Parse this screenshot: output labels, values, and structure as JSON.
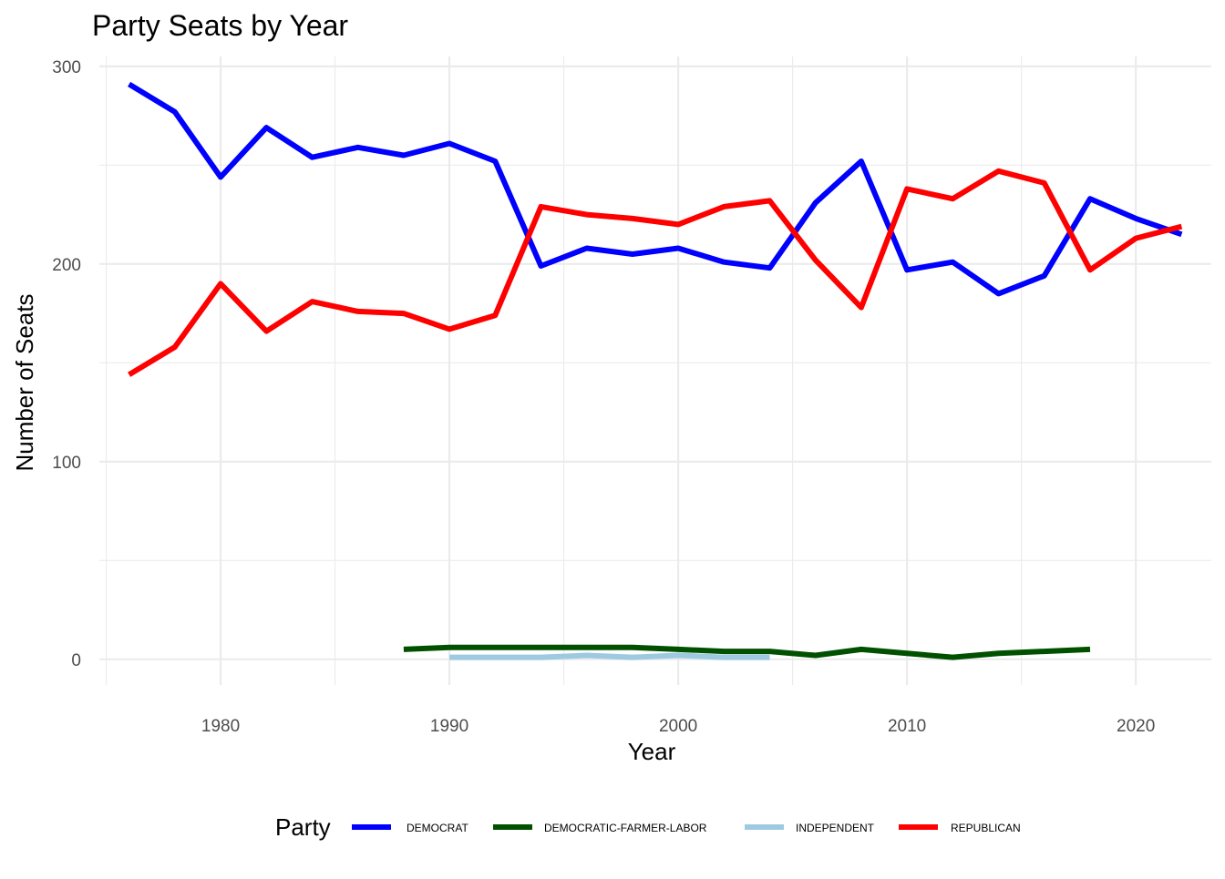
{
  "chart_data": {
    "type": "line",
    "title": "Party Seats by Year",
    "xlabel": "Year",
    "ylabel": "Number of Seats",
    "xlim": [
      1974.7,
      2023.3
    ],
    "ylim": [
      -13,
      305
    ],
    "x_ticks": [
      1980,
      1990,
      2000,
      2010,
      2020
    ],
    "x_minor_ticks": [
      1975,
      1985,
      1995,
      2005,
      2015
    ],
    "y_ticks": [
      0,
      100,
      200,
      300
    ],
    "y_minor_ticks": [
      50,
      150,
      250
    ],
    "grid": true,
    "legend": {
      "title": "Party",
      "position": "bottom"
    },
    "series": [
      {
        "name": "DEMOCRAT",
        "color": "#0000ff",
        "points": [
          [
            1976,
            291
          ],
          [
            1978,
            277
          ],
          [
            1980,
            244
          ],
          [
            1982,
            269
          ],
          [
            1984,
            254
          ],
          [
            1986,
            259
          ],
          [
            1988,
            255
          ],
          [
            1990,
            261
          ],
          [
            1992,
            252
          ],
          [
            1994,
            199
          ],
          [
            1996,
            208
          ],
          [
            1998,
            205
          ],
          [
            2000,
            208
          ],
          [
            2002,
            201
          ],
          [
            2004,
            198
          ],
          [
            2006,
            231
          ],
          [
            2008,
            252
          ],
          [
            2010,
            197
          ],
          [
            2012,
            201
          ],
          [
            2014,
            185
          ],
          [
            2016,
            194
          ],
          [
            2018,
            233
          ],
          [
            2020,
            223
          ],
          [
            2022,
            215
          ]
        ]
      },
      {
        "name": "DEMOCRATIC-FARMER-LABOR",
        "color": "#005000",
        "points": [
          [
            1988,
            5
          ],
          [
            1990,
            6
          ],
          [
            1992,
            6
          ],
          [
            1994,
            6
          ],
          [
            1996,
            6
          ],
          [
            1998,
            6
          ],
          [
            2000,
            5
          ],
          [
            2002,
            4
          ],
          [
            2004,
            4
          ],
          [
            2006,
            2
          ],
          [
            2008,
            5
          ],
          [
            2010,
            3
          ],
          [
            2012,
            1
          ],
          [
            2014,
            3
          ],
          [
            2016,
            4
          ],
          [
            2018,
            5
          ]
        ]
      },
      {
        "name": "INDEPENDENT",
        "color": "#9ecae1",
        "points": [
          [
            1990,
            1
          ],
          [
            1992,
            1
          ],
          [
            1994,
            1
          ],
          [
            1996,
            2
          ],
          [
            1998,
            1
          ],
          [
            2000,
            2
          ],
          [
            2002,
            1
          ],
          [
            2004,
            1
          ]
        ]
      },
      {
        "name": "REPUBLICAN",
        "color": "#ff0000",
        "points": [
          [
            1976,
            144
          ],
          [
            1978,
            158
          ],
          [
            1980,
            190
          ],
          [
            1982,
            166
          ],
          [
            1984,
            181
          ],
          [
            1986,
            176
          ],
          [
            1988,
            175
          ],
          [
            1990,
            167
          ],
          [
            1992,
            174
          ],
          [
            1994,
            229
          ],
          [
            1996,
            225
          ],
          [
            1998,
            223
          ],
          [
            2000,
            220
          ],
          [
            2002,
            229
          ],
          [
            2004,
            232
          ],
          [
            2006,
            202
          ],
          [
            2008,
            178
          ],
          [
            2010,
            238
          ],
          [
            2012,
            233
          ],
          [
            2014,
            247
          ],
          [
            2016,
            241
          ],
          [
            2018,
            197
          ],
          [
            2020,
            213
          ],
          [
            2022,
            219
          ]
        ]
      }
    ]
  }
}
